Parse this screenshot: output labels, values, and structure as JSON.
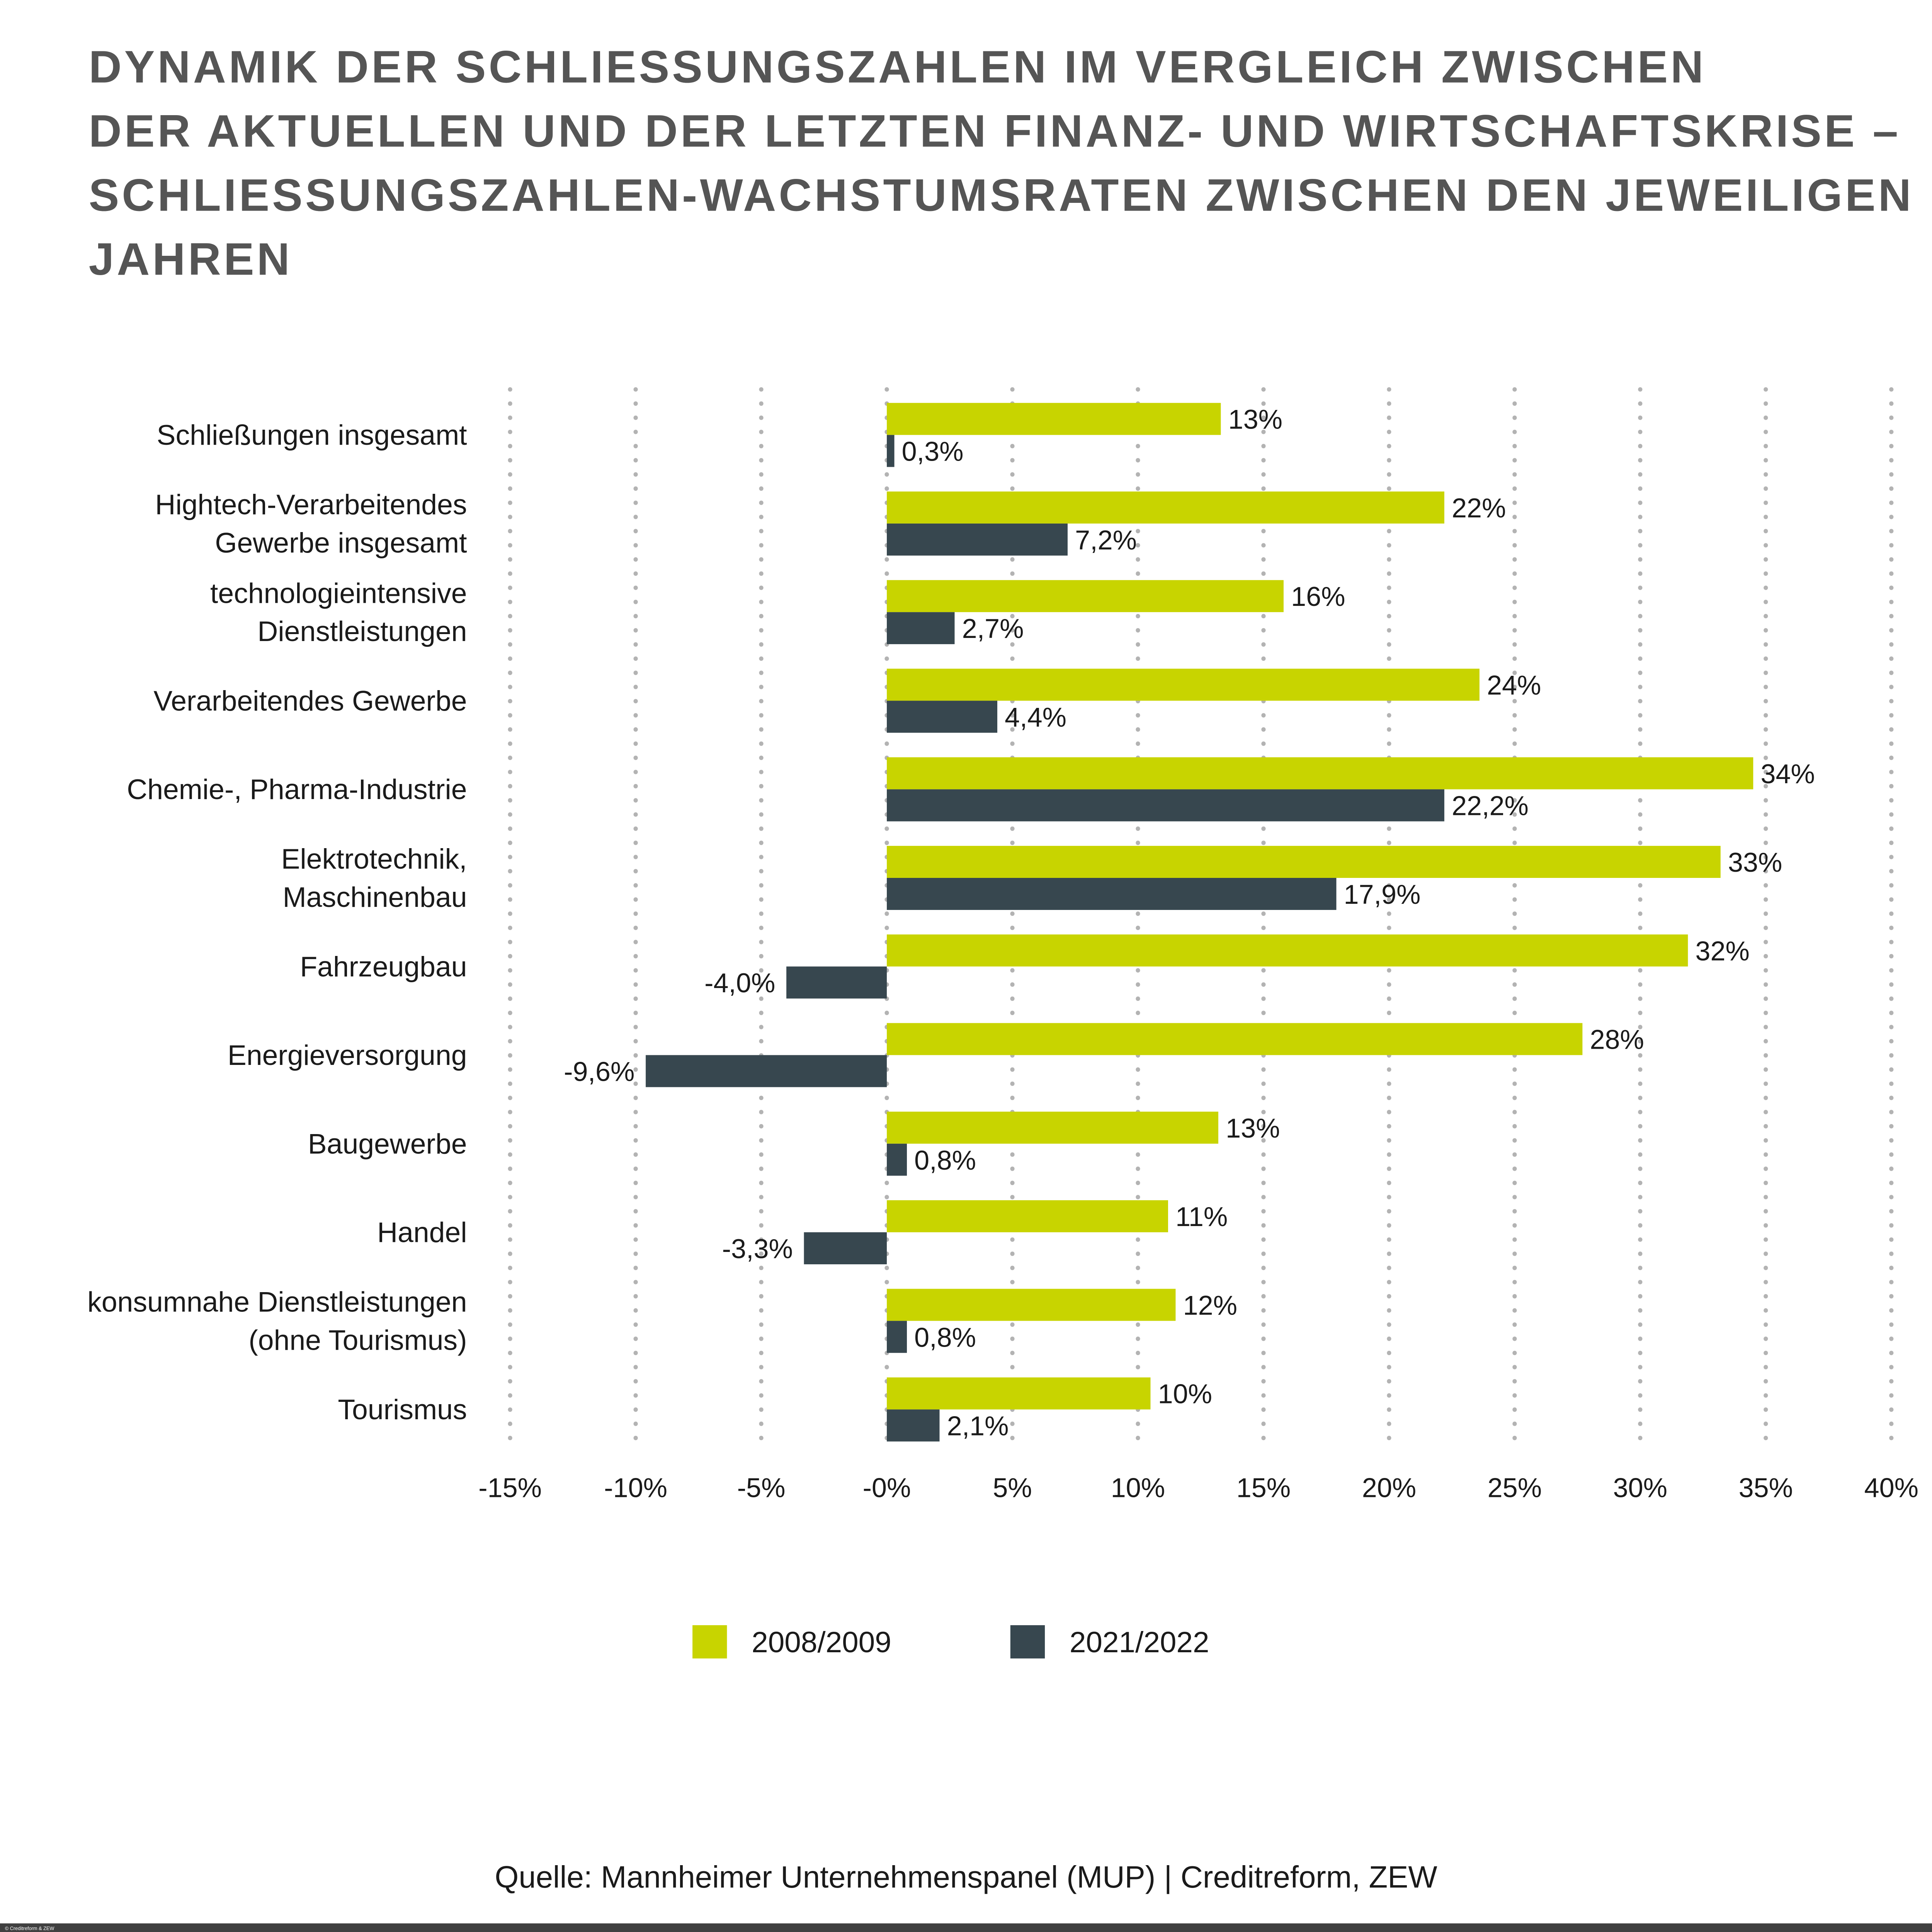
{
  "title_lines": [
    "DYNAMIK DER SCHLIESSUNGSZAHLEN IM VERGLEICH ZWISCHEN",
    "DER AKTUELLEN UND DER LETZTEN FINANZ- UND WIRTSCHAFTSKRISE –",
    "SCHLIESSUNGSZAHLEN-WACHSTUMSRATEN ZWISCHEN DEN JEWEILIGEN",
    "JAHREN"
  ],
  "source": "Quelle: Mannheimer Unternehmenspanel (MUP) | Creditreform, ZEW",
  "copyright": "© Creditreform & ZEW",
  "chart_data": {
    "type": "bar",
    "orientation": "horizontal",
    "categories": [
      [
        "Schließungen insgesamt"
      ],
      [
        "Hightech-Verarbeitendes",
        "Gewerbe insgesamt"
      ],
      [
        "technologieintensive",
        "Dienstleistungen"
      ],
      [
        "Verarbeitendes Gewerbe"
      ],
      [
        "Chemie-, Pharma-Industrie"
      ],
      [
        "Elektrotechnik,",
        "Maschinenbau"
      ],
      [
        "Fahrzeugbau"
      ],
      [
        "Energieversorgung"
      ],
      [
        "Baugewerbe"
      ],
      [
        "Handel"
      ],
      [
        "konsumnahe Dienstleistungen",
        "(ohne Tourismus)"
      ],
      [
        "Tourismus"
      ]
    ],
    "series": [
      {
        "name": "2008/2009",
        "color": "#c8d400",
        "values": [
          13.3,
          22.2,
          15.8,
          23.6,
          34.5,
          33.2,
          31.9,
          27.7,
          13.2,
          11.2,
          11.5,
          10.5
        ],
        "labels": [
          "13%",
          "22%",
          "16%",
          "24%",
          "34%",
          "33%",
          "32%",
          "28%",
          "13%",
          "11%",
          "12%",
          "10%"
        ]
      },
      {
        "name": "2021/2022",
        "color": "#37474f",
        "values": [
          0.3,
          7.2,
          2.7,
          4.4,
          22.2,
          17.9,
          -4.0,
          -9.6,
          0.8,
          -3.3,
          0.8,
          2.1
        ],
        "labels": [
          "0,3%",
          "7,2%",
          "2,7%",
          "4,4%",
          "22,2%",
          "17,9%",
          "-4,0%",
          "-9,6%",
          "0,8%",
          "-3,3%",
          "0,8%",
          "2,1%"
        ]
      }
    ],
    "xlim": [
      -15,
      40
    ],
    "xticks": [
      -15,
      -10,
      -5,
      0,
      5,
      10,
      15,
      20,
      25,
      30,
      35,
      40
    ],
    "xtick_labels": [
      "-15%",
      "-10%",
      "-5%",
      "-0%",
      "5%",
      "10%",
      "15%",
      "20%",
      "25%",
      "30%",
      "35%",
      "40%"
    ],
    "grid": "vertical dotted",
    "legend_position": "bottom"
  }
}
